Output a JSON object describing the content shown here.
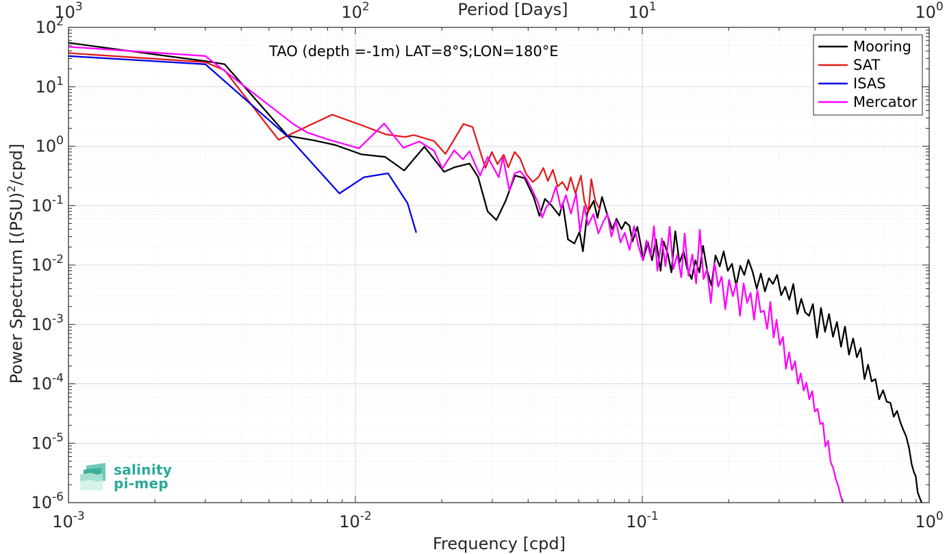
{
  "chart_data": {
    "type": "line",
    "scale": "log-log",
    "title": "TAO (depth =-1m) LAT=8°S;LON=180°E",
    "xlabel": "Frequency [cpd]",
    "ylabel_main": "Power Spectrum [(PSU)",
    "ylabel_sup": "2",
    "ylabel_tail": "/cpd]",
    "top_xlabel": "Period [Days]",
    "xlim": [
      0.001,
      1
    ],
    "ylim": [
      1e-06,
      100
    ],
    "grid": true,
    "legend_position": "top-right",
    "x_ticks": [
      {
        "value": 0.001,
        "base": "10",
        "exp": "-3"
      },
      {
        "value": 0.01,
        "base": "10",
        "exp": "-2"
      },
      {
        "value": 0.1,
        "base": "10",
        "exp": "-1"
      },
      {
        "value": 1,
        "base": "10",
        "exp": "0"
      }
    ],
    "top_ticks": [
      {
        "freq": 0.001,
        "base": "10",
        "exp": "3"
      },
      {
        "freq": 0.01,
        "base": "10",
        "exp": "2"
      },
      {
        "freq": 0.1,
        "base": "10",
        "exp": "1"
      },
      {
        "freq": 1,
        "base": "10",
        "exp": "0"
      }
    ],
    "y_ticks": [
      {
        "value": 100,
        "base": "10",
        "exp": "2"
      },
      {
        "value": 10,
        "base": "10",
        "exp": "1"
      },
      {
        "value": 1,
        "base": "10",
        "exp": "0"
      },
      {
        "value": 0.1,
        "base": "10",
        "exp": "-1"
      },
      {
        "value": 0.01,
        "base": "10",
        "exp": "-2"
      },
      {
        "value": 0.001,
        "base": "10",
        "exp": "-3"
      },
      {
        "value": 0.0001,
        "base": "10",
        "exp": "-4"
      },
      {
        "value": 1e-05,
        "base": "10",
        "exp": "-5"
      },
      {
        "value": 1e-06,
        "base": "10",
        "exp": "-6"
      }
    ],
    "series": [
      {
        "name": "Mooring",
        "color": "#000000",
        "points": [
          [
            0.001,
            55
          ],
          [
            0.003,
            27
          ],
          [
            0.0035,
            24
          ],
          [
            0.0058,
            1.5
          ],
          [
            0.0072,
            1.25
          ],
          [
            0.0085,
            1.05
          ],
          [
            0.0105,
            0.73
          ],
          [
            0.0127,
            0.66
          ],
          [
            0.0148,
            0.39
          ],
          [
            0.0174,
            0.98
          ],
          [
            0.0204,
            0.37
          ],
          [
            0.0221,
            0.44
          ],
          [
            0.025,
            0.51
          ],
          [
            0.0268,
            0.3
          ],
          [
            0.0289,
            0.08
          ],
          [
            0.031,
            0.057
          ],
          [
            0.0334,
            0.12
          ],
          [
            0.036,
            0.32
          ],
          [
            0.0389,
            0.29
          ],
          [
            0.0418,
            0.14
          ],
          [
            0.0438,
            0.067
          ],
          [
            0.0458,
            0.13
          ],
          [
            0.0483,
            0.1
          ],
          [
            0.0514,
            0.068
          ],
          [
            0.0528,
            0.11
          ],
          [
            0.0551,
            0.027
          ],
          [
            0.058,
            0.023
          ],
          [
            0.0604,
            0.036
          ],
          [
            0.0621,
            0.017
          ],
          [
            0.0643,
            0.075
          ],
          [
            0.0677,
            0.12
          ],
          [
            0.0698,
            0.062
          ],
          [
            0.0724,
            0.14
          ],
          [
            0.0749,
            0.08
          ],
          [
            0.0786,
            0.04
          ],
          [
            0.0813,
            0.06
          ],
          [
            0.0847,
            0.04
          ],
          [
            0.0872,
            0.053
          ],
          [
            0.0902,
            0.046
          ],
          [
            0.0925,
            0.025
          ],
          [
            0.0961,
            0.044
          ],
          [
            0.0995,
            0.018
          ],
          [
            0.1005,
            0.012
          ],
          [
            0.1046,
            0.024
          ],
          [
            0.1082,
            0.012
          ],
          [
            0.1116,
            0.027
          ],
          [
            0.1158,
            0.008
          ],
          [
            0.1187,
            0.025
          ],
          [
            0.1229,
            0.015
          ],
          [
            0.1263,
            0.0075
          ],
          [
            0.1303,
            0.037
          ],
          [
            0.1348,
            0.011
          ],
          [
            0.1393,
            0.017
          ],
          [
            0.1433,
            0.0087
          ],
          [
            0.1485,
            0.0058
          ],
          [
            0.1532,
            0.012
          ],
          [
            0.1581,
            0.0075
          ],
          [
            0.1628,
            0.021
          ],
          [
            0.1685,
            0.008
          ],
          [
            0.1742,
            0.0045
          ],
          [
            0.1799,
            0.0145
          ],
          [
            0.1862,
            0.0095
          ],
          [
            0.1921,
            0.017
          ],
          [
            0.1986,
            0.008
          ],
          [
            0.2054,
            0.0105
          ],
          [
            0.2124,
            0.0045
          ],
          [
            0.2195,
            0.0097
          ],
          [
            0.2268,
            0.0068
          ],
          [
            0.2343,
            0.0122
          ],
          [
            0.2424,
            0.0077
          ],
          [
            0.2505,
            0.004
          ],
          [
            0.2589,
            0.0072
          ],
          [
            0.2676,
            0.0036
          ],
          [
            0.2763,
            0.006
          ],
          [
            0.2854,
            0.0048
          ],
          [
            0.2951,
            0.0068
          ],
          [
            0.3049,
            0.0031
          ],
          [
            0.3151,
            0.0043
          ],
          [
            0.3252,
            0.0026
          ],
          [
            0.3362,
            0.0048
          ],
          [
            0.3471,
            0.0015
          ],
          [
            0.3582,
            0.0027
          ],
          [
            0.3694,
            0.0016
          ],
          [
            0.3811,
            0.0014
          ],
          [
            0.3934,
            0.0022
          ],
          [
            0.4064,
            0.0006
          ],
          [
            0.4197,
            0.0019
          ],
          [
            0.4336,
            0.00075
          ],
          [
            0.4476,
            0.0015
          ],
          [
            0.462,
            0.00062
          ],
          [
            0.4769,
            0.0011
          ],
          [
            0.4926,
            0.00042
          ],
          [
            0.5088,
            0.00092
          ],
          [
            0.5255,
            0.00031
          ],
          [
            0.543,
            0.00058
          ],
          [
            0.5598,
            0.00028
          ],
          [
            0.5769,
            0.0004
          ],
          [
            0.5948,
            0.00012
          ],
          [
            0.6125,
            0.00021
          ],
          [
            0.6303,
            0.00011
          ],
          [
            0.6491,
            0.00012
          ],
          [
            0.6693,
            5.5e-05
          ],
          [
            0.6906,
            7.8e-05
          ],
          [
            0.7114,
            5e-05
          ],
          [
            0.7321,
            4.8e-05
          ],
          [
            0.7521,
            2.8e-05
          ],
          [
            0.7727,
            3.5e-05
          ],
          [
            0.7923,
            2.3e-05
          ],
          [
            0.8115,
            1.7e-05
          ],
          [
            0.8316,
            1.3e-05
          ],
          [
            0.8515,
            8.2e-06
          ],
          [
            0.8683,
            4.5e-06
          ],
          [
            0.8835,
            3.3e-06
          ],
          [
            0.8975,
            2.8e-06
          ],
          [
            0.9117,
            1.5e-06
          ],
          [
            0.9264,
            1.2e-06
          ],
          [
            0.9416,
            1e-06
          ]
        ]
      },
      {
        "name": "SAT",
        "color": "#e31a1c",
        "points": [
          [
            0.001,
            37
          ],
          [
            0.003,
            26
          ],
          [
            0.0035,
            19
          ],
          [
            0.0054,
            1.28
          ],
          [
            0.0083,
            3.4
          ],
          [
            0.0104,
            2.3
          ],
          [
            0.0128,
            1.58
          ],
          [
            0.0149,
            1.43
          ],
          [
            0.016,
            1.54
          ],
          [
            0.0188,
            1.22
          ],
          [
            0.0206,
            0.74
          ],
          [
            0.0238,
            2.37
          ],
          [
            0.0256,
            2.1
          ],
          [
            0.0284,
            0.43
          ],
          [
            0.0299,
            0.8
          ],
          [
            0.0313,
            0.5
          ],
          [
            0.0329,
            0.72
          ],
          [
            0.0341,
            0.44
          ],
          [
            0.0359,
            0.8
          ],
          [
            0.0375,
            0.62
          ],
          [
            0.0394,
            0.34
          ],
          [
            0.0415,
            0.25
          ],
          [
            0.0434,
            0.3
          ],
          [
            0.0452,
            0.43
          ],
          [
            0.0469,
            0.26
          ],
          [
            0.0488,
            0.4
          ],
          [
            0.0507,
            0.21
          ],
          [
            0.0527,
            0.25
          ],
          [
            0.0548,
            0.18
          ],
          [
            0.0563,
            0.3
          ],
          [
            0.0585,
            0.16
          ],
          [
            0.0611,
            0.32
          ],
          [
            0.0628,
            0.12
          ],
          [
            0.0649,
            0.077
          ],
          [
            0.0664,
            0.28
          ],
          [
            0.0686,
            0.12
          ],
          [
            0.0712,
            0.085
          ]
        ]
      },
      {
        "name": "ISAS",
        "color": "#0000e6",
        "points": [
          [
            0.001,
            33
          ],
          [
            0.003,
            24
          ],
          [
            0.0059,
            1.36
          ],
          [
            0.0088,
            0.16
          ],
          [
            0.0107,
            0.3
          ],
          [
            0.013,
            0.35
          ],
          [
            0.0152,
            0.11
          ],
          [
            0.0163,
            0.035
          ]
        ]
      },
      {
        "name": "Mercator",
        "color": "#ff00ff",
        "points": [
          [
            0.001,
            47
          ],
          [
            0.003,
            33
          ],
          [
            0.0061,
            2.33
          ],
          [
            0.0068,
            1.7
          ],
          [
            0.0079,
            1.33
          ],
          [
            0.0103,
            0.92
          ],
          [
            0.0126,
            2.4
          ],
          [
            0.0147,
            0.94
          ],
          [
            0.0167,
            1.2
          ],
          [
            0.0188,
            0.84
          ],
          [
            0.0201,
            0.42
          ],
          [
            0.0221,
            0.85
          ],
          [
            0.0237,
            0.6
          ],
          [
            0.025,
            0.82
          ],
          [
            0.0272,
            0.32
          ],
          [
            0.0289,
            0.66
          ],
          [
            0.0316,
            0.3
          ],
          [
            0.0327,
            0.65
          ],
          [
            0.0344,
            0.18
          ],
          [
            0.0359,
            0.35
          ],
          [
            0.0376,
            0.38
          ],
          [
            0.0395,
            0.28
          ],
          [
            0.0414,
            0.18
          ],
          [
            0.0434,
            0.11
          ],
          [
            0.0448,
            0.063
          ],
          [
            0.0463,
            0.095
          ],
          [
            0.0482,
            0.12
          ],
          [
            0.05,
            0.21
          ],
          [
            0.0521,
            0.088
          ],
          [
            0.0542,
            0.15
          ],
          [
            0.0564,
            0.073
          ],
          [
            0.0588,
            0.16
          ],
          [
            0.0607,
            0.036
          ],
          [
            0.0628,
            0.098
          ],
          [
            0.0647,
            0.047
          ],
          [
            0.0676,
            0.072
          ],
          [
            0.0703,
            0.034
          ],
          [
            0.0729,
            0.052
          ],
          [
            0.0756,
            0.072
          ],
          [
            0.0781,
            0.03
          ],
          [
            0.0809,
            0.055
          ],
          [
            0.0839,
            0.024
          ],
          [
            0.0869,
            0.035
          ],
          [
            0.0903,
            0.018
          ],
          [
            0.0936,
            0.045
          ],
          [
            0.0969,
            0.021
          ],
          [
            0.1004,
            0.012
          ],
          [
            0.1034,
            0.026
          ],
          [
            0.107,
            0.014
          ],
          [
            0.1098,
            0.045
          ],
          [
            0.1129,
            0.008
          ],
          [
            0.117,
            0.028
          ],
          [
            0.1204,
            0.0095
          ],
          [
            0.1246,
            0.044
          ],
          [
            0.1283,
            0.0085
          ],
          [
            0.1325,
            0.015
          ],
          [
            0.1367,
            0.0062
          ],
          [
            0.1405,
            0.034
          ],
          [
            0.1448,
            0.0066
          ],
          [
            0.1494,
            0.015
          ],
          [
            0.1541,
            0.0049
          ],
          [
            0.1587,
            0.039
          ],
          [
            0.1635,
            0.0058
          ],
          [
            0.168,
            0.0085
          ],
          [
            0.1733,
            0.0023
          ],
          [
            0.1786,
            0.0109
          ],
          [
            0.1839,
            0.0043
          ],
          [
            0.1891,
            0.0064
          ],
          [
            0.1947,
            0.0018
          ],
          [
            0.2006,
            0.0056
          ],
          [
            0.2068,
            0.003
          ],
          [
            0.2128,
            0.005
          ],
          [
            0.2191,
            0.0014
          ],
          [
            0.2255,
            0.0049
          ],
          [
            0.232,
            0.0023
          ],
          [
            0.2386,
            0.0034
          ],
          [
            0.2453,
            0.0012
          ],
          [
            0.2519,
            0.0038
          ],
          [
            0.2586,
            0.0016
          ],
          [
            0.2655,
            0.0017
          ],
          [
            0.2724,
            0.00084
          ],
          [
            0.2796,
            0.0024
          ],
          [
            0.2867,
            0.0006
          ],
          [
            0.2937,
            0.0012
          ],
          [
            0.3014,
            0.00045
          ],
          [
            0.3091,
            0.00062
          ],
          [
            0.3167,
            0.00018
          ],
          [
            0.3247,
            0.00034
          ],
          [
            0.3324,
            0.00017
          ],
          [
            0.3407,
            0.00024
          ],
          [
            0.3489,
            0.0001
          ],
          [
            0.3567,
            0.00015
          ],
          [
            0.3653,
            7.7e-05
          ],
          [
            0.3733,
            0.000105
          ],
          [
            0.3821,
            5.5e-05
          ],
          [
            0.3911,
            7.5e-05
          ],
          [
            0.3993,
            3.4e-05
          ],
          [
            0.4082,
            3.8e-05
          ],
          [
            0.4172,
            2.1e-05
          ],
          [
            0.4262,
            2.2e-05
          ],
          [
            0.4348,
            8.8e-06
          ],
          [
            0.4441,
            1.1e-05
          ],
          [
            0.4535,
            4.8e-06
          ],
          [
            0.4631,
            3.8e-06
          ],
          [
            0.4726,
            2.5e-06
          ],
          [
            0.4822,
            1.9e-06
          ],
          [
            0.4915,
            1.3e-06
          ],
          [
            0.5004,
            1e-06
          ]
        ]
      }
    ]
  },
  "logo": {
    "line1": "salinity",
    "line2": "pi-mep",
    "color": "#2aa89a",
    "icon": "salinity-wave-icon"
  }
}
